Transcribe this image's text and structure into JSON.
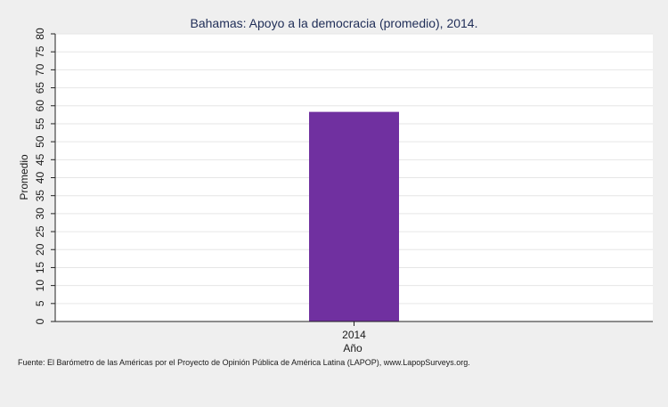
{
  "chart_data": {
    "type": "bar",
    "title": "Bahamas: Apoyo a la democracia (promedio), 2014.",
    "xlabel": "Año",
    "ylabel": "Promedio",
    "categories": [
      "2014"
    ],
    "values": [
      58.3
    ],
    "ylim": [
      0,
      80
    ],
    "yticks": [
      0,
      5,
      10,
      15,
      20,
      25,
      30,
      35,
      40,
      45,
      50,
      55,
      60,
      65,
      70,
      75,
      80
    ],
    "grid": true,
    "bar_color": "#7030a0",
    "note": "Fuente: El Barómetro de las Américas por el Proyecto de Opinión Pública de América Latina (LAPOP), www.LapopSurveys.org."
  }
}
